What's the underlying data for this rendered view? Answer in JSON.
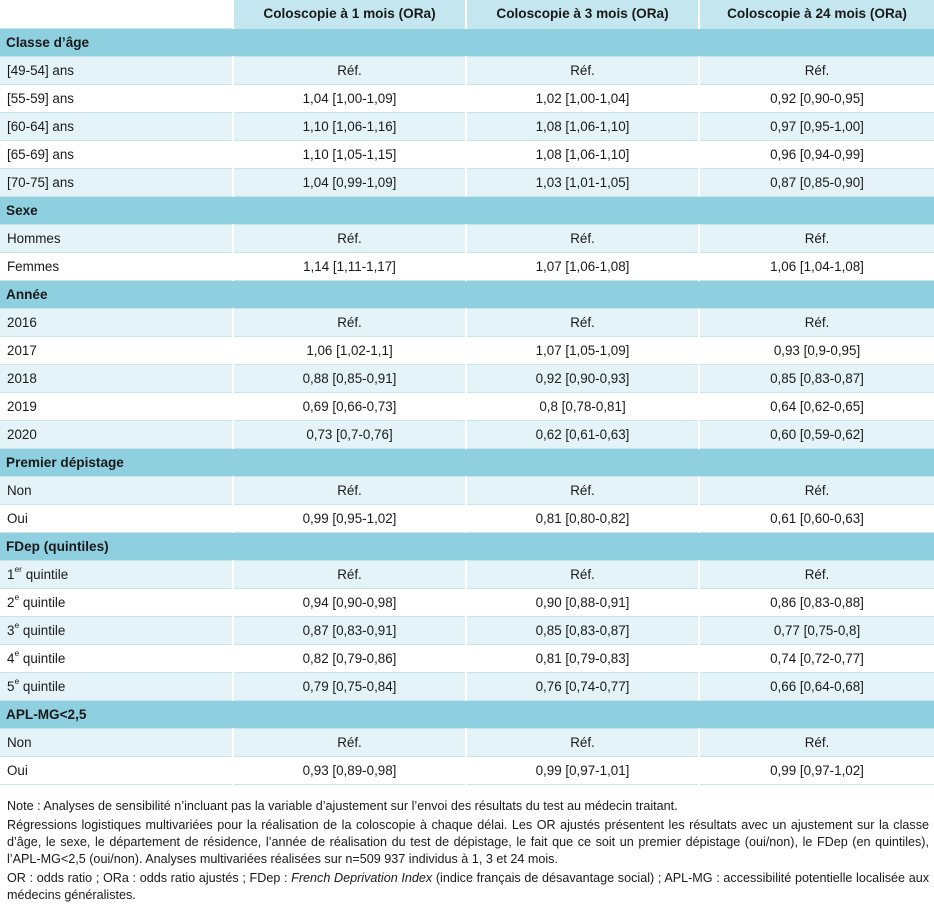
{
  "table": {
    "headers": [
      "",
      "Coloscopie à 1 mois (ORa)",
      "Coloscopie à 3 mois (ORa)",
      "Coloscopie à 24 mois (ORa)"
    ],
    "groups": [
      {
        "title": "Classe d’âge",
        "rows": [
          {
            "label": "[49-54] ans",
            "values": [
              "Réf.",
              "Réf.",
              "Réf."
            ]
          },
          {
            "label": "[55-59] ans",
            "values": [
              "1,04 [1,00-1,09]",
              "1,02 [1,00-1,04]",
              "0,92 [0,90-0,95]"
            ]
          },
          {
            "label": "[60-64] ans",
            "values": [
              "1,10 [1,06-1,16]",
              "1,08 [1,06-1,10]",
              "0,97 [0,95-1,00]"
            ]
          },
          {
            "label": "[65-69] ans",
            "values": [
              "1,10 [1,05-1,15]",
              "1,08 [1,06-1,10]",
              "0,96 [0,94-0,99]"
            ]
          },
          {
            "label": "[70-75] ans",
            "values": [
              "1,04 [0,99-1,09]",
              "1,03 [1,01-1,05]",
              "0,87 [0,85-0,90]"
            ]
          }
        ]
      },
      {
        "title": "Sexe",
        "rows": [
          {
            "label": "Hommes",
            "values": [
              "Réf.",
              "Réf.",
              "Réf."
            ]
          },
          {
            "label": "Femmes",
            "values": [
              "1,14 [1,11-1,17]",
              "1,07 [1,06-1,08]",
              "1,06 [1,04-1,08]"
            ]
          }
        ]
      },
      {
        "title": "Année",
        "rows": [
          {
            "label": "2016",
            "values": [
              "Réf.",
              "Réf.",
              "Réf."
            ]
          },
          {
            "label": "2017",
            "values": [
              "1,06 [1,02-1,1]",
              "1,07 [1,05-1,09]",
              "0,93 [0,9-0,95]"
            ]
          },
          {
            "label": "2018",
            "values": [
              "0,88 [0,85-0,91]",
              "0,92 [0,90-0,93]",
              "0,85 [0,83-0,87]"
            ]
          },
          {
            "label": "2019",
            "values": [
              "0,69 [0,66-0,73]",
              "0,8 [0,78-0,81]",
              "0,64 [0,62-0,65]"
            ]
          },
          {
            "label": "2020",
            "values": [
              "0,73 [0,7-0,76]",
              "0,62 [0,61-0,63]",
              "0,60 [0,59-0,62]"
            ]
          }
        ]
      },
      {
        "title": "Premier dépistage",
        "rows": [
          {
            "label": "Non",
            "values": [
              "Réf.",
              "Réf.",
              "Réf."
            ]
          },
          {
            "label": "Oui",
            "values": [
              "0,99 [0,95-1,02]",
              "0,81 [0,80-0,82]",
              "0,61 [0,60-0,63]"
            ]
          }
        ]
      },
      {
        "title": "FDep (quintiles)",
        "rows": [
          {
            "label": "1",
            "sup": "er",
            "suffix": " quintile",
            "values": [
              "Réf.",
              "Réf.",
              "Réf."
            ]
          },
          {
            "label": "2",
            "sup": "e",
            "suffix": " quintile",
            "values": [
              "0,94 [0,90-0,98]",
              "0,90 [0,88-0,91]",
              "0,86 [0,83-0,88]"
            ]
          },
          {
            "label": "3",
            "sup": "e",
            "suffix": " quintile",
            "values": [
              "0,87 [0,83-0,91]",
              "0,85 [0,83-0,87]",
              "0,77 [0,75-0,8]"
            ]
          },
          {
            "label": "4",
            "sup": "e",
            "suffix": " quintile",
            "values": [
              "0,82 [0,79-0,86]",
              "0,81 [0,79-0,83]",
              "0,74 [0,72-0,77]"
            ]
          },
          {
            "label": "5",
            "sup": "e",
            "suffix": " quintile",
            "values": [
              "0,79 [0,75-0,84]",
              "0,76 [0,74-0,77]",
              "0,66 [0,64-0,68]"
            ]
          }
        ]
      },
      {
        "title": "APL-MG<2,5",
        "rows": [
          {
            "label": "Non",
            "values": [
              "Réf.",
              "Réf.",
              "Réf."
            ]
          },
          {
            "label": "Oui",
            "values": [
              "0,93 [0,89-0,98]",
              "0,99 [0,97-1,01]",
              "0,99 [0,97-1,02]"
            ]
          }
        ]
      }
    ]
  },
  "notes": {
    "note1": "Note : Analyses de sensibilité n’incluant pas la variable d’ajustement sur l’envoi des résultats du test au médecin traitant.",
    "note2": "Régressions logistiques multivariées pour la réalisation de la coloscopie à chaque délai. Les OR ajustés présentent les résultats avec un ajustement sur la classe d’âge, le sexe, le département de résidence, l’année de réalisation du test de dépistage, le fait que ce soit un premier dépistage (oui/non), le FDep (en quintiles), l’APL-MG<2,5 (oui/non). Analyses multivariées réalisées sur n=509 937 individus à 1, 3 et 24 mois.",
    "note3_before": "OR : odds ratio ; ORa : odds ratio ajustés ; FDep : ",
    "note3_italic": "French Deprivation Index",
    "note3_after": " (indice français de désavantage social) ; APL-MG : accessibilité potentielle localisée aux médecins généralistes."
  }
}
